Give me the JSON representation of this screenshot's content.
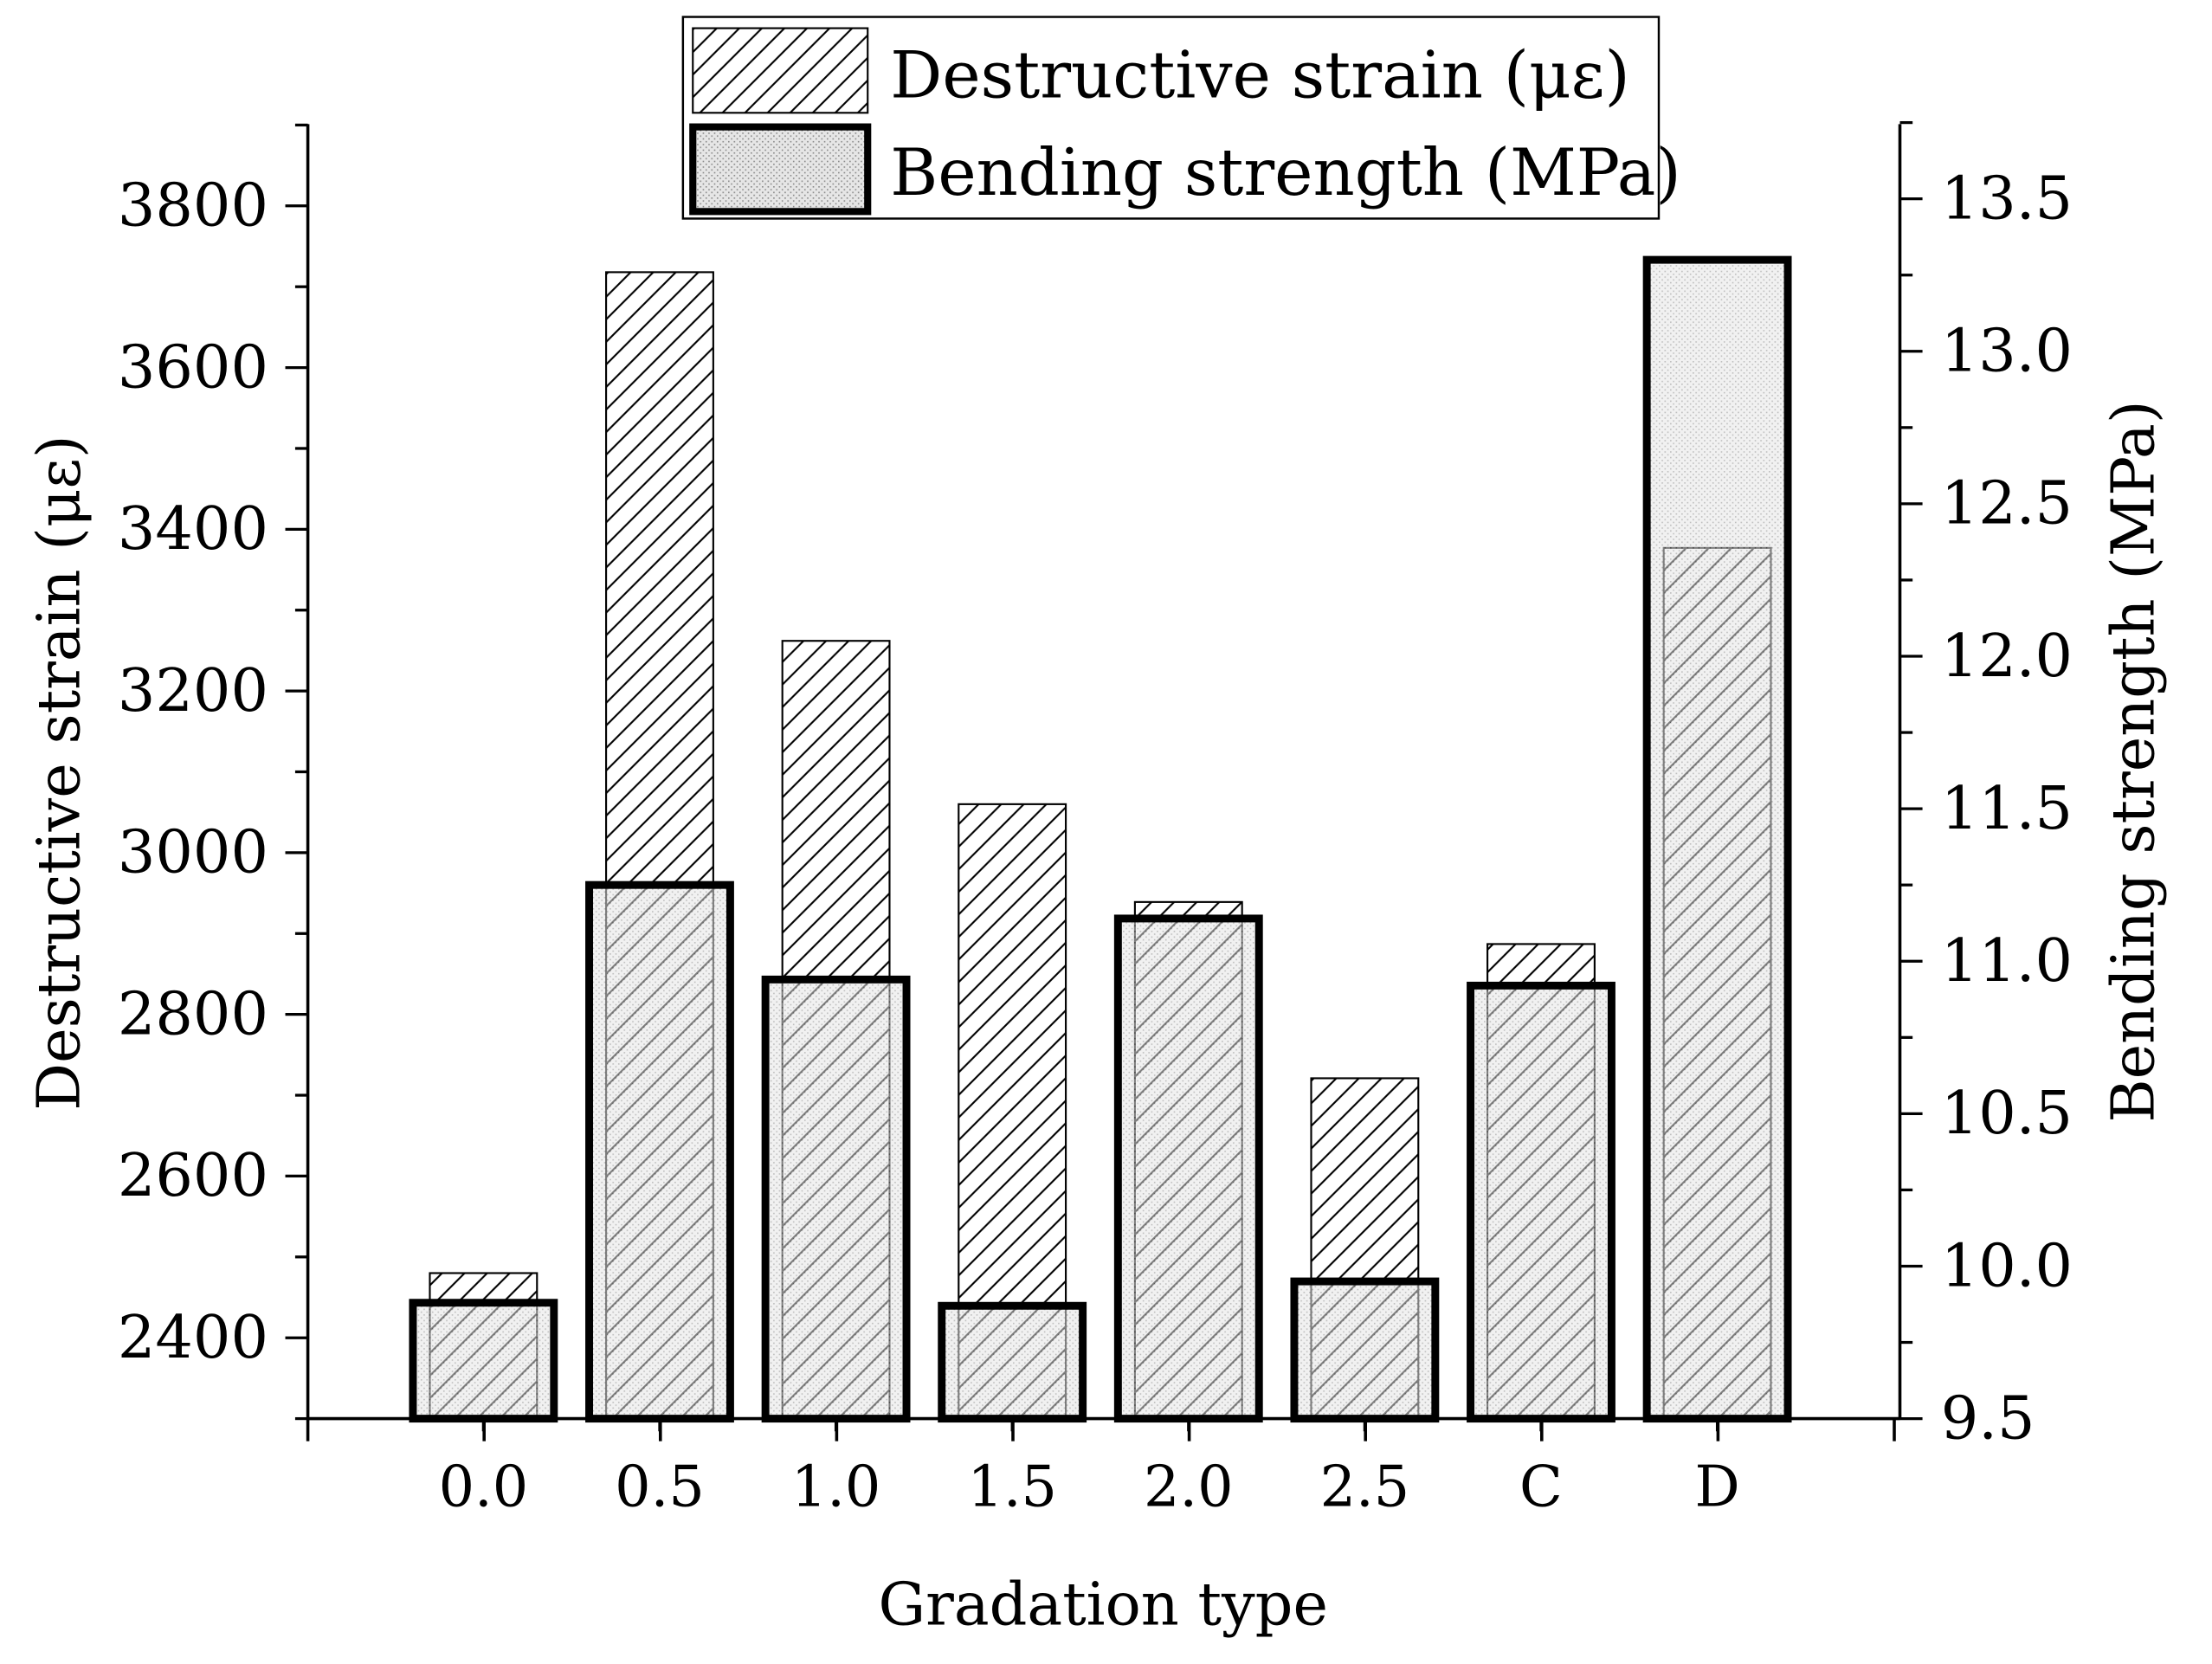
{
  "chart_data": {
    "type": "bar",
    "title": "",
    "xlabel": "Gradation type",
    "ylabel": "Destructive strain (με)",
    "y2label": "Bending strength (MPa)",
    "categories": [
      "0.0",
      "0.5",
      "1.0",
      "1.5",
      "2.0",
      "2.5",
      "C",
      "D"
    ],
    "ylim": [
      2300,
      3900
    ],
    "y2lim": [
      9.5,
      13.75
    ],
    "yticks": [
      2400,
      2600,
      2800,
      3000,
      3200,
      3400,
      3600,
      3800
    ],
    "ytick_labels": [
      "2400",
      "2600",
      "2800",
      "3000",
      "3200",
      "3400",
      "3600",
      "3800"
    ],
    "y2ticks": [
      9.5,
      10.0,
      10.5,
      11.0,
      11.5,
      12.0,
      12.5,
      13.0,
      13.5
    ],
    "y2tick_labels": [
      "9.5",
      "10.0",
      "10.5",
      "11.0",
      "11.5",
      "12.0",
      "12.5",
      "13.0",
      "13.5"
    ],
    "grid": false,
    "legend_position": "top-center",
    "series": [
      {
        "name": "Destructive strain (με)",
        "axis": "left",
        "pattern": "hatch",
        "values": [
          2480,
          3718,
          3262,
          3060,
          2939,
          2721,
          2887,
          3377
        ]
      },
      {
        "name": "Bending strength (MPa)",
        "axis": "right",
        "pattern": "dots",
        "values": [
          9.88,
          11.25,
          10.94,
          9.87,
          11.14,
          9.95,
          10.92,
          13.3
        ]
      }
    ]
  }
}
